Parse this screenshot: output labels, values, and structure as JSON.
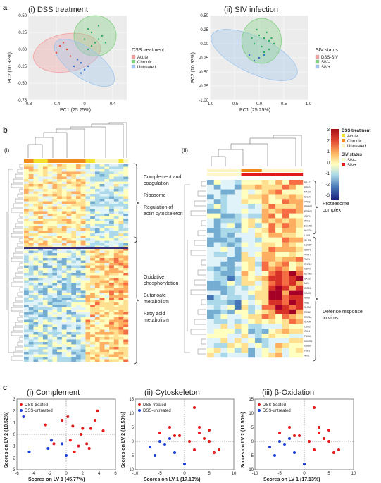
{
  "colors": {
    "acute": "#f2a0a0",
    "chronic": "#7fcf7f",
    "untreated": "#9ec6ee",
    "dss_siv": "#f2a0a0",
    "siv_neg": "#7fcf7f",
    "siv_pos": "#9ec6ee",
    "treated": "#e31a1c",
    "untreated_pls": "#1f3fd6",
    "ann_acute": "#f2e22a",
    "ann_chronic": "#f08a1b",
    "ann_untreated": "#fdf6c9",
    "ann_sivneg": "#fdf6c9",
    "ann_sivpos": "#e31a1c"
  },
  "panel_a": {
    "label": "a",
    "p1": {
      "title": "(i) DSS treatment",
      "xlabel": "PC1 (25.25%)",
      "ylabel": "PC2 (10.93%)",
      "legend_title": "DSS treatment",
      "legend": [
        "Acute",
        "Chronic",
        "Untreated"
      ]
    },
    "p2": {
      "title": "(ii) SIV infection",
      "xlabel": "PC1 (25.25%)",
      "ylabel": "PC2 (10.93%)",
      "legend_title": "SIV status",
      "legend": [
        "DSS-SIV",
        "SIV–",
        "SIV+"
      ]
    }
  },
  "panel_b": {
    "label": "b",
    "sub_i": "(i)",
    "sub_ii": "(ii)",
    "annotations_i": [
      "Complement and",
      "coagulation",
      "Ribosome",
      "Regulation of",
      "actin cytoskeleton",
      "Oxidative",
      "phosphorylation",
      "Butanoate",
      "metabolism",
      "Fatty acid",
      "metabolism"
    ],
    "annotations_ii": [
      "Proteasome",
      "complex",
      "Defense response",
      "to virus"
    ],
    "genes": [
      "PSA7",
      "PSB9",
      "NAGK",
      "SNAA",
      "TPD3",
      "PSMB2",
      "PSMS1",
      "GBP1",
      "IFIH1",
      "EDAR2",
      "HVS05",
      "LAC8",
      "IDHS2",
      "LGS8P",
      "STAT1",
      "TYPH",
      "TAP1",
      "RNZ12",
      "GBP3",
      "DDX58",
      "OAS2",
      "MX1",
      "ISG15",
      "OAS3",
      "IFIT3",
      "IAB6",
      "SLFN5",
      "RCN2",
      "RAT3A",
      "ISAMP",
      "CBR2",
      "ITIH4",
      "FBLN5",
      "NBDR3",
      "C1689",
      "PSB1",
      "IFIT1"
    ],
    "scale_ticks": [
      "3",
      "2",
      "1",
      "0",
      "-1",
      "-2",
      "-3"
    ],
    "legend_dss_title": "DSS treatment",
    "legend_dss": [
      "Acute",
      "Chronic",
      "Untreated"
    ],
    "legend_siv_title": "SIV status",
    "legend_siv": [
      "SIV–",
      "SIV+"
    ]
  },
  "panel_c": {
    "label": "c",
    "p1": {
      "title": "(i) Complement",
      "xlabel": "Scores on LV 1 (45.77%)",
      "ylabel": "Scores on LV 2 (10.52%)"
    },
    "p2": {
      "title": "(ii) Cytoskeleton",
      "xlabel": "Scores on LV 1 (17.13%)",
      "ylabel": "Scores on LV 2 (11.50%)"
    },
    "p3": {
      "title": "(iii) β-Oxidation",
      "xlabel": "Scores on LV 1 (17.13%)",
      "ylabel": "Scores on LV 2 (11.50%)"
    },
    "legend": [
      "DSS-treated",
      "DSS-untreated"
    ]
  },
  "chart_data": [
    {
      "type": "scatter",
      "title": "(i) DSS treatment",
      "xlabel": "PC1 (25.25%)",
      "ylabel": "PC2 (10.93%)",
      "xlim": [
        -0.8,
        0.6
      ],
      "ylim": [
        -0.75,
        0.5
      ],
      "xticks": [
        -0.8,
        -0.4,
        0,
        0.4
      ],
      "yticks": [
        -0.75,
        -0.5,
        -0.25,
        0,
        0.25,
        0.5
      ],
      "series": [
        {
          "name": "Acute",
          "points": [
            [
              -0.3,
              0.1
            ],
            [
              -0.25,
              0.0
            ],
            [
              -0.4,
              -0.05
            ],
            [
              -0.2,
              -0.1
            ],
            [
              -0.35,
              0.05
            ]
          ]
        },
        {
          "name": "Chronic",
          "points": [
            [
              0.05,
              0.3
            ],
            [
              0.1,
              0.25
            ],
            [
              0.2,
              0.15
            ],
            [
              0.15,
              0.1
            ],
            [
              0.25,
              0.2
            ],
            [
              0.0,
              0.15
            ],
            [
              0.3,
              0.1
            ],
            [
              0.1,
              0.05
            ],
            [
              0.2,
              0.35
            ],
            [
              0.05,
              0.0
            ]
          ]
        },
        {
          "name": "Untreated",
          "points": [
            [
              -0.1,
              -0.15
            ],
            [
              -0.05,
              -0.2
            ],
            [
              0.0,
              -0.3
            ],
            [
              -0.15,
              -0.25
            ],
            [
              -0.05,
              -0.35
            ],
            [
              0.05,
              -0.25
            ]
          ]
        }
      ]
    },
    {
      "type": "scatter",
      "title": "(ii) SIV infection",
      "xlabel": "PC1 (25.25%)",
      "ylabel": "PC2 (10.93%)",
      "xlim": [
        -1.0,
        1.0
      ],
      "ylim": [
        -1.0,
        0.5
      ],
      "xticks": [
        -1.0,
        -0.5,
        0,
        0.5,
        1.0
      ],
      "yticks": [
        -1.0,
        -0.75,
        -0.5,
        -0.25,
        0,
        0.25,
        0.5
      ],
      "series": [
        {
          "name": "DSS-SIV",
          "points": []
        },
        {
          "name": "SIV–",
          "points": [
            [
              0.0,
              0.15
            ],
            [
              0.1,
              0.1
            ],
            [
              0.2,
              0.05
            ],
            [
              -0.1,
              0.0
            ],
            [
              0.05,
              -0.05
            ],
            [
              0.15,
              0.2
            ],
            [
              0.25,
              0.1
            ],
            [
              -0.05,
              0.25
            ],
            [
              0.1,
              -0.15
            ],
            [
              0.2,
              -0.1
            ],
            [
              -0.15,
              0.1
            ],
            [
              0.3,
              0.0
            ]
          ]
        },
        {
          "name": "SIV+",
          "points": [
            [
              -0.2,
              -0.2
            ],
            [
              0.0,
              -0.25
            ],
            [
              -0.1,
              -0.3
            ],
            [
              0.1,
              -0.2
            ]
          ]
        }
      ]
    },
    {
      "type": "scatter",
      "title": "(i) Complement",
      "xlabel": "Scores on LV 1 (45.77%)",
      "ylabel": "Scores on LV 2 (10.52%)",
      "xlim": [
        -6,
        6
      ],
      "ylim": [
        -3,
        3
      ],
      "xticks": [
        -6,
        -4,
        -2,
        0,
        2,
        4,
        6
      ],
      "yticks": [
        -3,
        -2,
        -1,
        0,
        1,
        2,
        3
      ],
      "series": [
        {
          "name": "DSS-treated",
          "points": [
            [
              -2.5,
              0.8
            ],
            [
              -1.5,
              -0.8
            ],
            [
              0.5,
              -0.5
            ],
            [
              1.5,
              -1.0
            ],
            [
              2.0,
              0.5
            ],
            [
              0.8,
              0.7
            ],
            [
              3.5,
              1.2
            ],
            [
              3.0,
              0.5
            ],
            [
              2.5,
              -0.8
            ],
            [
              4.5,
              0.3
            ],
            [
              0.2,
              1.5
            ],
            [
              1.0,
              -1.5
            ],
            [
              3.8,
              2.0
            ],
            [
              2.8,
              -1.2
            ],
            [
              -0.5,
              1.2
            ],
            [
              1.8,
              0.0
            ]
          ]
        },
        {
          "name": "DSS-untreated",
          "points": [
            [
              -5.2,
              1.5
            ],
            [
              -4.5,
              -1.5
            ],
            [
              -1.8,
              -0.5
            ],
            [
              -0.5,
              -0.8
            ],
            [
              -2.2,
              -1.2
            ],
            [
              0.0,
              -1.8
            ]
          ]
        }
      ]
    },
    {
      "type": "scatter",
      "title": "(ii) Cytoskeleton",
      "xlabel": "Scores on LV 1 (17.13%)",
      "ylabel": "Scores on LV 2 (11.50%)",
      "xlim": [
        -10,
        10
      ],
      "ylim": [
        -10,
        15
      ],
      "xticks": [
        -10,
        -5,
        0,
        5,
        10
      ],
      "yticks": [
        -10,
        -5,
        0,
        5,
        10,
        15
      ],
      "series": [
        {
          "name": "DSS-treated",
          "points": [
            [
              -5,
              3
            ],
            [
              -3,
              5
            ],
            [
              -2,
              2
            ],
            [
              1,
              0
            ],
            [
              2,
              12
            ],
            [
              3,
              3
            ],
            [
              4,
              1
            ],
            [
              5,
              0
            ],
            [
              2,
              -3
            ],
            [
              6,
              -4
            ],
            [
              7,
              -3
            ],
            [
              5,
              4
            ],
            [
              -1,
              2
            ],
            [
              3,
              5
            ]
          ]
        },
        {
          "name": "DSS-untreated",
          "points": [
            [
              -7,
              -2
            ],
            [
              -6,
              -5
            ],
            [
              -4,
              -1
            ],
            [
              -3,
              1
            ],
            [
              -2,
              -4
            ],
            [
              0,
              -8
            ],
            [
              -5,
              0
            ]
          ]
        }
      ]
    },
    {
      "type": "scatter",
      "title": "(iii) β-Oxidation",
      "xlabel": "Scores on LV 1 (17.13%)",
      "ylabel": "Scores on LV 2 (11.50%)",
      "xlim": [
        -10,
        10
      ],
      "ylim": [
        -10,
        15
      ],
      "xticks": [
        -10,
        -5,
        0,
        5,
        10
      ],
      "yticks": [
        -10,
        -5,
        0,
        5,
        10,
        15
      ],
      "series": [
        {
          "name": "DSS-treated",
          "points": [
            [
              -5,
              3
            ],
            [
              -3,
              5
            ],
            [
              -2,
              2
            ],
            [
              1,
              0
            ],
            [
              2,
              12
            ],
            [
              3,
              3
            ],
            [
              4,
              1
            ],
            [
              5,
              0
            ],
            [
              2,
              -3
            ],
            [
              6,
              -4
            ],
            [
              7,
              -3
            ],
            [
              5,
              4
            ],
            [
              -1,
              2
            ],
            [
              3,
              5
            ]
          ]
        },
        {
          "name": "DSS-untreated",
          "points": [
            [
              -7,
              -2
            ],
            [
              -6,
              -5
            ],
            [
              -4,
              -1
            ],
            [
              -3,
              1
            ],
            [
              -2,
              -4
            ],
            [
              0,
              -8
            ],
            [
              -5,
              0
            ]
          ]
        }
      ]
    }
  ]
}
